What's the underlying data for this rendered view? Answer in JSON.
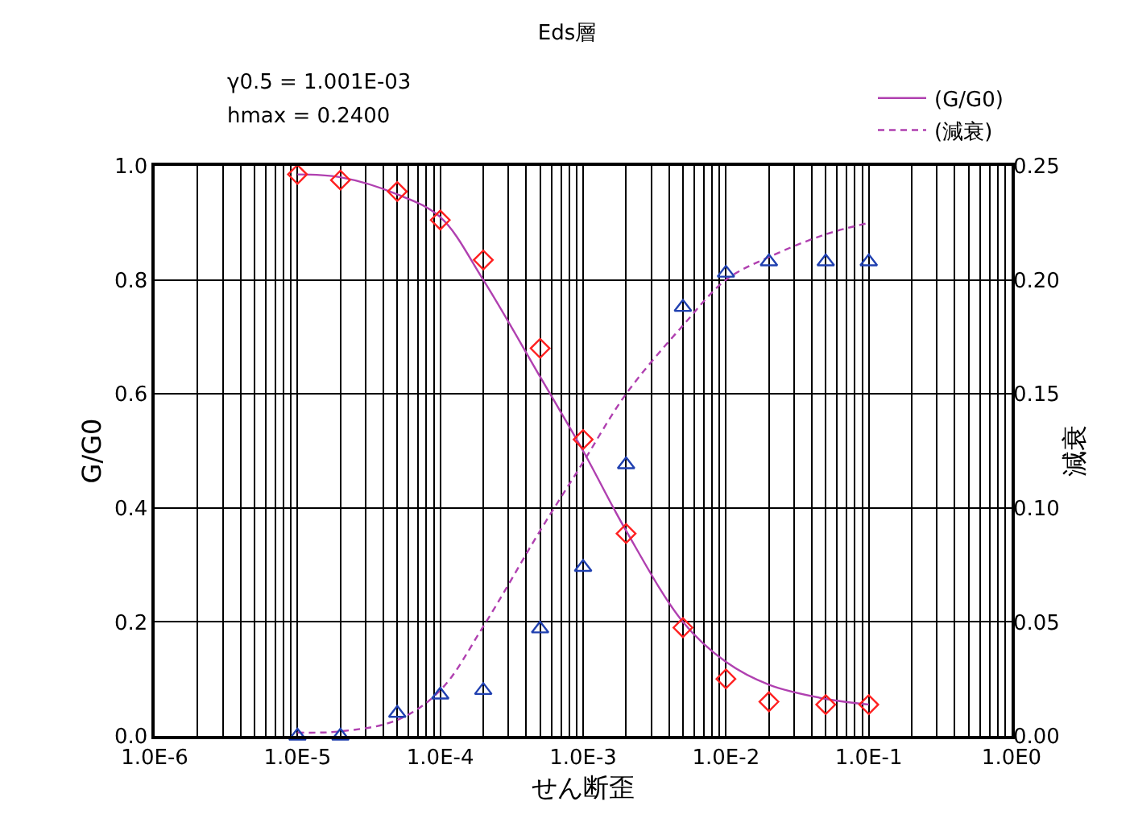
{
  "chart_data": {
    "type": "line",
    "title": "Eds層",
    "xlabel": "せん断歪",
    "ylabel": "G/G0",
    "y2label": "減衰",
    "annotations": [
      "γ0.5 = 1.001E-03",
      "hmax = 0.2400"
    ],
    "log": "x",
    "grid": true,
    "legend": "top right",
    "xlim": [
      1e-06,
      1
    ],
    "xticks": [
      {
        "value": 1e-06,
        "label": "1.0E-6"
      },
      {
        "value": 1e-05,
        "label": "1.0E-5"
      },
      {
        "value": 0.0001,
        "label": "1.0E-4"
      },
      {
        "value": 0.001,
        "label": "1.0E-3"
      },
      {
        "value": 0.01,
        "label": "1.0E-2"
      },
      {
        "value": 0.1,
        "label": "1.0E-1"
      },
      {
        "value": 1,
        "label": "1.0E0"
      }
    ],
    "ylim": [
      0,
      1
    ],
    "yticks": [
      {
        "value": 0,
        "label": "0.0"
      },
      0.2,
      0.4,
      0.6,
      0.8,
      {
        "value": 1,
        "label": "1.0"
      }
    ],
    "y2lim": [
      0,
      0.25
    ],
    "y2ticks": [
      {
        "value": 0,
        "label": "0.00"
      },
      0.05,
      {
        "value": 0.1,
        "label": "0.10"
      },
      0.15,
      {
        "value": 0.2,
        "label": "0.20"
      },
      0.25
    ],
    "series": [
      {
        "name": "(G/G0)",
        "color": "#b040b0",
        "line_style": "solid",
        "marker": "none",
        "x": [
          1e-05,
          2e-05,
          5e-05,
          0.0001,
          0.0002,
          0.0005,
          0.001,
          0.002,
          0.005,
          0.01,
          0.02,
          0.05,
          0.1
        ],
        "values": [
          0.985,
          0.98,
          0.95,
          0.91,
          0.8,
          0.63,
          0.5,
          0.36,
          0.2,
          0.13,
          0.09,
          0.065,
          0.055
        ]
      },
      {
        "name": "(減衰)",
        "axis": "y2",
        "color": "#b040b0",
        "line_style": "dashed",
        "marker": "none",
        "x": [
          1e-05,
          2e-05,
          5e-05,
          0.0001,
          0.0002,
          0.0005,
          0.001,
          0.002,
          0.005,
          0.01,
          0.02,
          0.05,
          0.1
        ],
        "values": [
          0.0015,
          0.002,
          0.007,
          0.02,
          0.048,
          0.09,
          0.12,
          0.15,
          0.18,
          0.2,
          0.21,
          0.22,
          0.225
        ]
      },
      {
        "type": "scatter",
        "color": "#ff2020",
        "marker": "diamond",
        "x": [
          1e-05,
          2e-05,
          5e-05,
          0.0001,
          0.0002,
          0.0005,
          0.001,
          0.002,
          0.005,
          0.01,
          0.02,
          0.05,
          0.1
        ],
        "values": [
          0.985,
          0.975,
          0.955,
          0.905,
          0.835,
          0.68,
          0.52,
          0.355,
          0.19,
          0.1,
          0.06,
          0.055,
          0.055
        ]
      },
      {
        "type": "scatter",
        "axis": "y2",
        "color": "#2040b0",
        "marker": "triangle",
        "x": [
          1e-05,
          2e-05,
          5e-05,
          0.0001,
          0.0002,
          0.0005,
          0.001,
          0.002,
          0.005,
          0.01,
          0.02,
          0.05,
          0.1
        ],
        "values": [
          0,
          0,
          0.01,
          0.018,
          0.02,
          0.047,
          0.074,
          0.119,
          0.188,
          0.203,
          0.208,
          0.208,
          0.208
        ]
      }
    ]
  }
}
